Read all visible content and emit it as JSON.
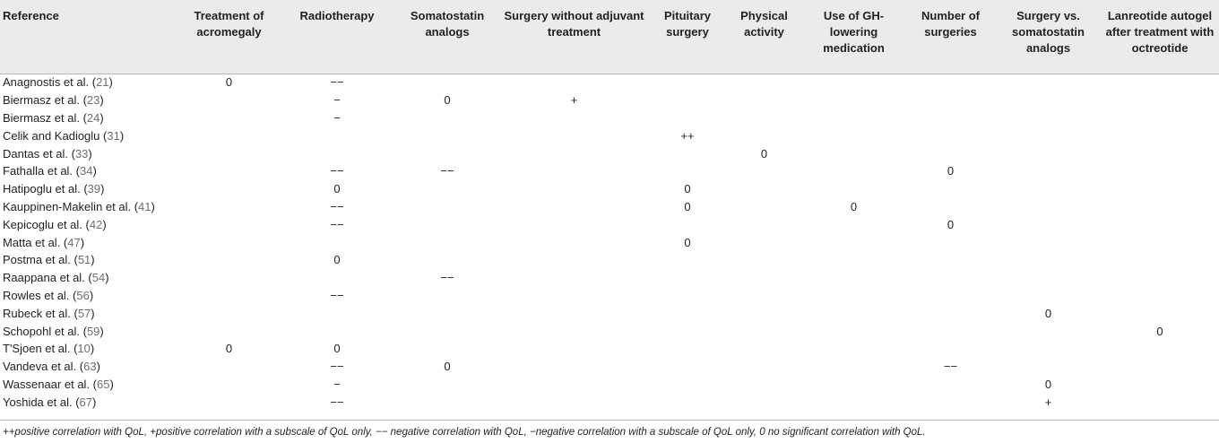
{
  "columns": [
    "Reference",
    "Treatment of acromegaly",
    "Radiotherapy",
    "Somatostatin analogs",
    "Surgery without adjuvant treatment",
    "Pituitary surgery",
    "Physical activity",
    "Use of GH-lowering medication",
    "Number of surgeries",
    "Surgery vs. somatostatin analogs",
    "Lanreotide autogel after treatment with octreotide"
  ],
  "rows": [
    {
      "ref": "Anagnostis et al. (",
      "cite": "21",
      "close": ")",
      "cells": [
        "0",
        "−−",
        "",
        "",
        "",
        "",
        "",
        "",
        "",
        ""
      ]
    },
    {
      "ref": "Biermasz et al. (",
      "cite": "23",
      "close": ")",
      "cells": [
        "",
        "−",
        "0",
        "+",
        "",
        "",
        "",
        "",
        "",
        ""
      ]
    },
    {
      "ref": "Biermasz et al. (",
      "cite": "24",
      "close": ")",
      "cells": [
        "",
        "−",
        "",
        "",
        "",
        "",
        "",
        "",
        "",
        ""
      ]
    },
    {
      "ref": "Celik and Kadioglu (",
      "cite": "31",
      "close": ")",
      "cells": [
        "",
        "",
        "",
        "",
        "++",
        "",
        "",
        "",
        "",
        ""
      ]
    },
    {
      "ref": "Dantas et al. (",
      "cite": "33",
      "close": ")",
      "cells": [
        "",
        "",
        "",
        "",
        "",
        "0",
        "",
        "",
        "",
        ""
      ]
    },
    {
      "ref": "Fathalla et al. (",
      "cite": "34",
      "close": ")",
      "cells": [
        "",
        "−−",
        "−−",
        "",
        "",
        "",
        "",
        "0",
        "",
        ""
      ]
    },
    {
      "ref": "Hatipoglu et al. (",
      "cite": "39",
      "close": ")",
      "cells": [
        "",
        "0",
        "",
        "",
        "0",
        "",
        "",
        "",
        "",
        ""
      ]
    },
    {
      "ref": "Kauppinen-Makelin et al. (",
      "cite": "41",
      "close": ")",
      "cells": [
        "",
        "−−",
        "",
        "",
        "0",
        "",
        "0",
        "",
        "",
        ""
      ]
    },
    {
      "ref": "Kepicoglu et al. (",
      "cite": "42",
      "close": ")",
      "cells": [
        "",
        "−−",
        "",
        "",
        "",
        "",
        "",
        "0",
        "",
        ""
      ]
    },
    {
      "ref": "Matta et al. (",
      "cite": "47",
      "close": ")",
      "cells": [
        "",
        "",
        "",
        "",
        "0",
        "",
        "",
        "",
        "",
        ""
      ]
    },
    {
      "ref": "Postma et al. (",
      "cite": "51",
      "close": ")",
      "cells": [
        "",
        "0",
        "",
        "",
        "",
        "",
        "",
        "",
        "",
        ""
      ]
    },
    {
      "ref": "Raappana et al. (",
      "cite": "54",
      "close": ")",
      "cells": [
        "",
        "",
        "−−",
        "",
        "",
        "",
        "",
        "",
        "",
        ""
      ]
    },
    {
      "ref": "Rowles et al. (",
      "cite": "56",
      "close": ")",
      "cells": [
        "",
        "−−",
        "",
        "",
        "",
        "",
        "",
        "",
        "",
        ""
      ]
    },
    {
      "ref": "Rubeck et al. (",
      "cite": "57",
      "close": ")",
      "cells": [
        "",
        "",
        "",
        "",
        "",
        "",
        "",
        "",
        "0",
        ""
      ]
    },
    {
      "ref": "Schopohl et al. (",
      "cite": "59",
      "close": ")",
      "cells": [
        "",
        "",
        "",
        "",
        "",
        "",
        "",
        "",
        "",
        "0"
      ]
    },
    {
      "ref": "T'Sjoen et al. (",
      "cite": "10",
      "close": ")",
      "cells": [
        "0",
        "0",
        "",
        "",
        "",
        "",
        "",
        "",
        "",
        ""
      ]
    },
    {
      "ref": "Vandeva et al. (",
      "cite": "63",
      "close": ")",
      "cells": [
        "",
        "−−",
        "0",
        "",
        "",
        "",
        "",
        "−−",
        "",
        ""
      ]
    },
    {
      "ref": "Wassenaar et al. (",
      "cite": "65",
      "close": ")",
      "cells": [
        "",
        "−",
        "",
        "",
        "",
        "",
        "",
        "",
        "0",
        ""
      ]
    },
    {
      "ref": "Yoshida et al. (",
      "cite": "67",
      "close": ")",
      "cells": [
        "",
        "−−",
        "",
        "",
        "",
        "",
        "",
        "",
        "+",
        ""
      ]
    }
  ],
  "footnote": "++positive correlation with QoL, +positive correlation with a subscale of QoL only, −− negative correlation with QoL, −negative correlation with a subscale of QoL only, 0 no significant correlation with QoL."
}
